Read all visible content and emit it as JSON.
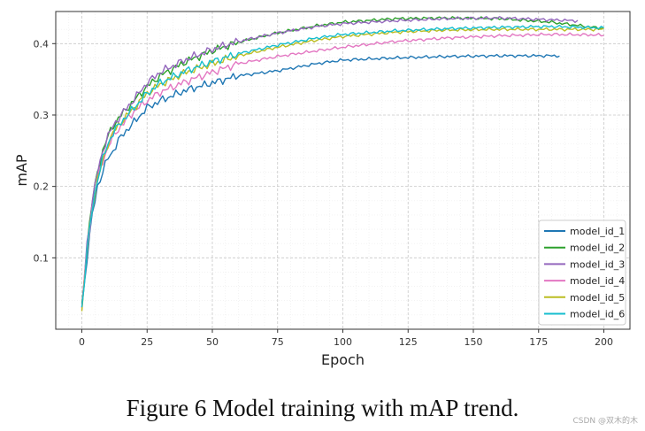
{
  "caption": "Figure 6 Model training with mAP trend.",
  "watermark": "CSDN @双木的木",
  "chart_data": {
    "type": "line",
    "xlabel": "Epoch",
    "ylabel": "mAP",
    "xlim": [
      -10,
      210
    ],
    "ylim": [
      0.0,
      0.445
    ],
    "xticks": [
      0,
      25,
      50,
      75,
      100,
      125,
      150,
      175,
      200
    ],
    "yticks": [
      0.1,
      0.2,
      0.3,
      0.4
    ],
    "grid": true,
    "legend_position": "bottom-right",
    "series": [
      {
        "name": "model_id_1",
        "color": "#1f77b4",
        "end": 183,
        "x": [
          0,
          2,
          4,
          6,
          8,
          10,
          12,
          15,
          20,
          25,
          30,
          40,
          50,
          60,
          75,
          90,
          100,
          120,
          140,
          160,
          183
        ],
        "y": [
          0.03,
          0.1,
          0.16,
          0.2,
          0.22,
          0.24,
          0.25,
          0.27,
          0.29,
          0.31,
          0.32,
          0.335,
          0.345,
          0.355,
          0.362,
          0.372,
          0.377,
          0.38,
          0.382,
          0.383,
          0.383
        ]
      },
      {
        "name": "model_id_2",
        "color": "#2ca02c",
        "end": 200,
        "x": [
          0,
          2,
          4,
          6,
          8,
          10,
          12,
          15,
          20,
          25,
          30,
          40,
          50,
          60,
          75,
          90,
          100,
          120,
          140,
          160,
          180,
          200
        ],
        "y": [
          0.03,
          0.12,
          0.18,
          0.22,
          0.25,
          0.27,
          0.285,
          0.3,
          0.32,
          0.34,
          0.355,
          0.375,
          0.39,
          0.402,
          0.415,
          0.425,
          0.43,
          0.435,
          0.436,
          0.435,
          0.43,
          0.421
        ]
      },
      {
        "name": "model_id_3",
        "color": "#9467bd",
        "end": 190,
        "x": [
          0,
          2,
          4,
          6,
          8,
          10,
          12,
          15,
          20,
          25,
          30,
          40,
          50,
          60,
          75,
          90,
          100,
          120,
          140,
          160,
          175,
          190
        ],
        "y": [
          0.03,
          0.12,
          0.18,
          0.22,
          0.25,
          0.27,
          0.285,
          0.3,
          0.322,
          0.345,
          0.36,
          0.378,
          0.392,
          0.403,
          0.415,
          0.424,
          0.428,
          0.432,
          0.435,
          0.436,
          0.434,
          0.432
        ]
      },
      {
        "name": "model_id_4",
        "color": "#e377c2",
        "end": 200,
        "x": [
          0,
          2,
          4,
          6,
          8,
          10,
          12,
          15,
          20,
          25,
          30,
          40,
          50,
          60,
          75,
          90,
          100,
          120,
          140,
          160,
          180,
          200
        ],
        "y": [
          0.03,
          0.11,
          0.17,
          0.21,
          0.235,
          0.255,
          0.27,
          0.285,
          0.305,
          0.32,
          0.332,
          0.347,
          0.36,
          0.372,
          0.382,
          0.39,
          0.395,
          0.403,
          0.408,
          0.411,
          0.413,
          0.412
        ]
      },
      {
        "name": "model_id_5",
        "color": "#bcbd22",
        "end": 200,
        "x": [
          0,
          2,
          4,
          6,
          8,
          10,
          12,
          15,
          20,
          25,
          30,
          40,
          50,
          60,
          75,
          90,
          100,
          120,
          140,
          160,
          180,
          200
        ],
        "y": [
          0.025,
          0.11,
          0.17,
          0.21,
          0.235,
          0.26,
          0.275,
          0.29,
          0.31,
          0.33,
          0.343,
          0.36,
          0.372,
          0.383,
          0.395,
          0.405,
          0.41,
          0.416,
          0.419,
          0.42,
          0.42,
          0.42
        ]
      },
      {
        "name": "model_id_6",
        "color": "#17becf",
        "end": 200,
        "x": [
          0,
          2,
          4,
          6,
          8,
          10,
          12,
          15,
          20,
          25,
          30,
          40,
          50,
          60,
          75,
          90,
          100,
          120,
          140,
          160,
          180,
          200
        ],
        "y": [
          0.03,
          0.11,
          0.17,
          0.21,
          0.238,
          0.26,
          0.275,
          0.29,
          0.31,
          0.33,
          0.345,
          0.362,
          0.375,
          0.386,
          0.398,
          0.408,
          0.413,
          0.418,
          0.421,
          0.423,
          0.424,
          0.422
        ]
      }
    ]
  }
}
